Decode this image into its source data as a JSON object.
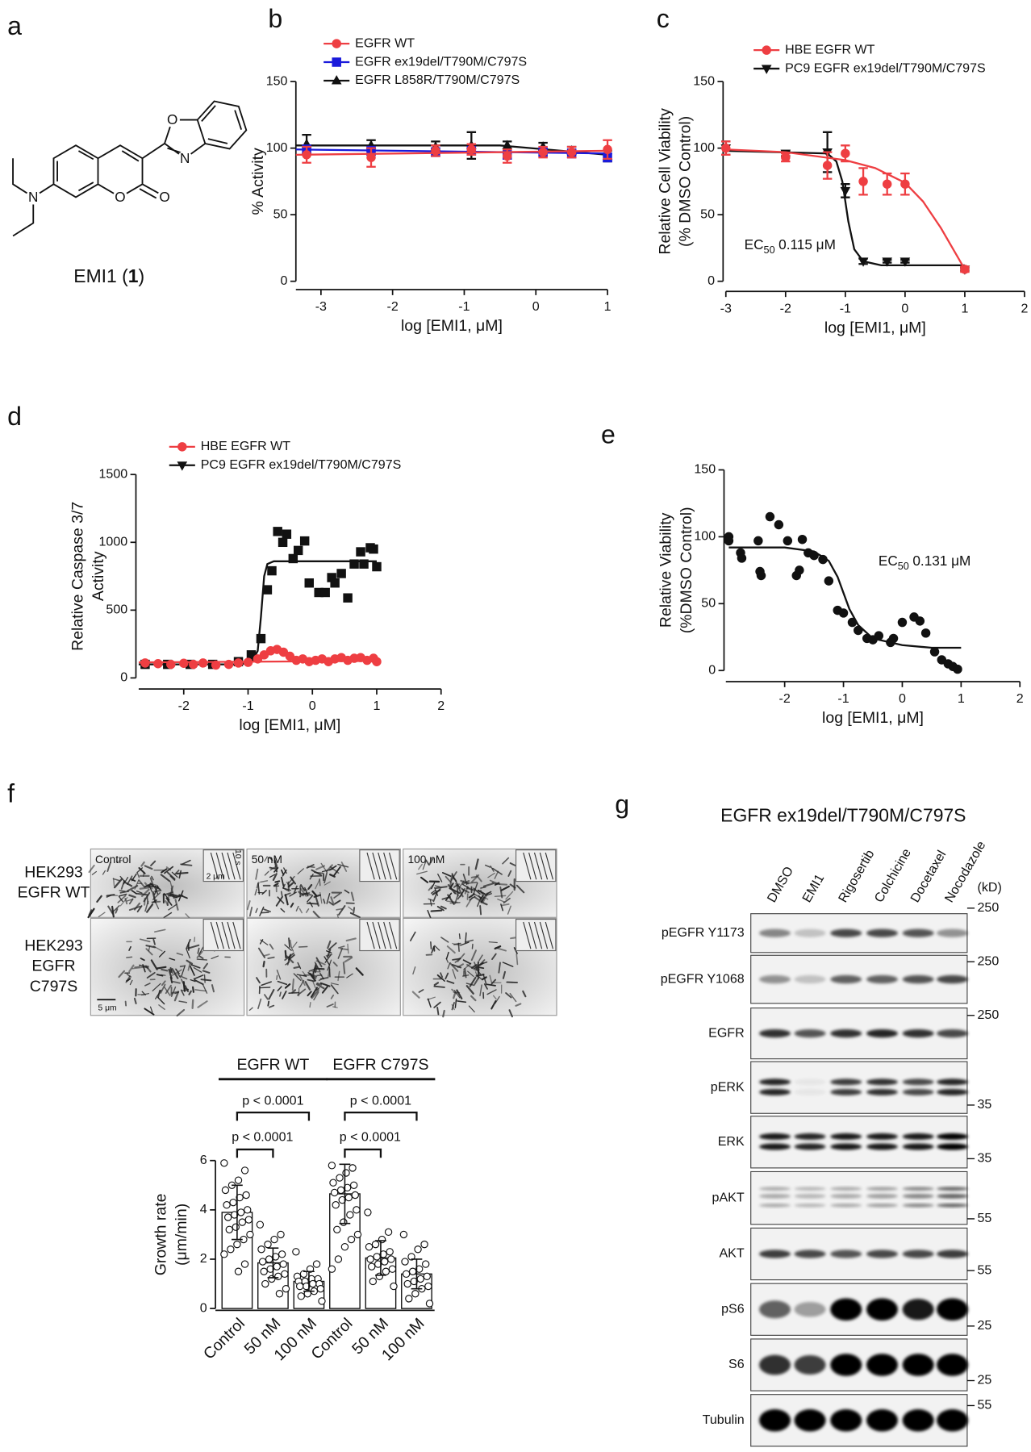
{
  "compound": {
    "panel_label": "a",
    "atoms": [
      "N",
      "O",
      "O",
      "O",
      "N"
    ],
    "name_parts": [
      "EMI1 (",
      "1",
      ")"
    ]
  },
  "chart_data": [
    {
      "type": "line",
      "panel_label": "b",
      "xlabel": "log [EMI1, μM]",
      "ylabel": [
        "% Activity"
      ],
      "xlim": [
        -3.35,
        1
      ],
      "ylim": [
        0,
        150
      ],
      "xticks": [
        -3,
        -2,
        -1,
        0,
        1
      ],
      "yticks": [
        0,
        50,
        100,
        150
      ],
      "legend": "top-left",
      "series": [
        {
          "name": "EGFR WT",
          "color": "#ee3e42",
          "marker": "circle",
          "x": [
            -3.2,
            -2.3,
            -1.4,
            -0.9,
            -0.4,
            0.1,
            0.5,
            1
          ],
          "values": [
            95,
            93,
            98,
            99,
            94,
            97,
            97,
            99
          ],
          "errors": [
            6,
            7,
            4,
            4,
            5,
            4,
            4,
            7
          ],
          "fit": {
            "x": [
              -3.35,
              1
            ],
            "values": [
              95,
              98
            ]
          }
        },
        {
          "name": "EGFR ex19del/T790M/C797S",
          "color": "#1a1adb",
          "marker": "square",
          "x": [
            -3.2,
            -2.3,
            -1.4,
            -0.9,
            -0.4,
            0.1,
            0.5,
            1
          ],
          "values": [
            99,
            98,
            97,
            98,
            95,
            97,
            96,
            93
          ],
          "errors": [
            3,
            3,
            3,
            3,
            3,
            3,
            3,
            3
          ],
          "fit": {
            "x": [
              -3.35,
              1
            ],
            "values": [
              99,
              96
            ]
          }
        },
        {
          "name": "EGFR L858R/T790M/C797S",
          "color": "#111111",
          "marker": "triangle",
          "x": [
            -3.2,
            -2.3,
            -1.4,
            -0.9,
            -0.4,
            0.1,
            0.5,
            1
          ],
          "values": [
            103,
            102,
            101,
            102,
            102,
            101,
            98,
            94
          ],
          "errors": [
            7,
            4,
            4,
            10,
            3,
            3,
            3,
            4
          ],
          "fit": {
            "x": [
              -3.35,
              -0.5,
              1
            ],
            "values": [
              102,
              102,
              95
            ]
          }
        }
      ]
    },
    {
      "type": "line",
      "panel_label": "c",
      "xlabel": "log [EMI1, μM]",
      "ylabel": [
        "Relative Cell Viability",
        "(% DMSO Control)"
      ],
      "xlim": [
        -3,
        2
      ],
      "ylim": [
        0,
        150
      ],
      "xticks": [
        -3,
        -2,
        -1,
        0,
        1,
        2
      ],
      "yticks": [
        0,
        50,
        100,
        150
      ],
      "legend": "top-left",
      "annotation": {
        "text": "EC",
        "sub": "50",
        "value": "0.115 μM"
      },
      "series": [
        {
          "name": "HBE EGFR WT",
          "color": "#ee3e42",
          "marker": "circle",
          "x": [
            -3,
            -2,
            -1.3,
            -1,
            -0.7,
            -0.3,
            0,
            1
          ],
          "values": [
            100,
            93,
            87,
            96,
            75,
            73,
            73,
            9
          ],
          "errors": [
            5,
            3,
            10,
            6,
            10,
            8,
            8,
            2
          ],
          "fit": {
            "x": [
              -3,
              -2,
              -1,
              -0.5,
              0,
              0.3,
              0.6,
              1
            ],
            "values": [
              99,
              97,
              91,
              85,
              74,
              60,
              40,
              9
            ]
          }
        },
        {
          "name": "PC9 EGFR ex19del/T790M/C797S",
          "color": "#111111",
          "marker": "triangle-down",
          "x": [
            -3,
            -2,
            -1.3,
            -1,
            -0.7,
            -0.3,
            0,
            1
          ],
          "values": [
            100,
            96,
            97,
            68,
            15,
            15,
            15,
            9
          ],
          "errors": [
            5,
            2,
            15,
            5,
            2,
            1,
            1,
            1
          ],
          "fit": {
            "x": [
              -3,
              -1.3,
              -1.15,
              -1.05,
              -0.95,
              -0.85,
              -0.7,
              -0.4,
              1
            ],
            "values": [
              98,
              96,
              90,
              75,
              45,
              24,
              15,
              12,
              12
            ]
          }
        }
      ]
    },
    {
      "type": "scatter",
      "panel_label": "d",
      "xlabel": "log [EMI1, μM]",
      "ylabel": [
        "Relative Caspase 3/7",
        "Activity"
      ],
      "xlim": [
        -2.7,
        2
      ],
      "ylim": [
        0,
        1500
      ],
      "xticks": [
        -2,
        -1,
        0,
        1,
        2
      ],
      "yticks": [
        0,
        500,
        1000,
        1500
      ],
      "legend": "top-left",
      "series": [
        {
          "name": "HBE EGFR WT",
          "color": "#ee3e42",
          "marker": "circle",
          "legend_marker": "circle",
          "x": [
            -2.6,
            -2.4,
            -2.2,
            -2.0,
            -1.85,
            -1.7,
            -1.5,
            -1.3,
            -1.15,
            -1.0,
            -0.85,
            -0.75,
            -0.65,
            -0.55,
            -0.45,
            -0.35,
            -0.25,
            -0.15,
            -0.05,
            0.05,
            0.15,
            0.25,
            0.35,
            0.45,
            0.55,
            0.65,
            0.75,
            0.85,
            0.95,
            1.0
          ],
          "values": [
            110,
            105,
            100,
            108,
            100,
            110,
            95,
            100,
            110,
            115,
            140,
            170,
            200,
            210,
            190,
            160,
            130,
            140,
            120,
            130,
            140,
            120,
            140,
            150,
            130,
            145,
            150,
            130,
            145,
            120
          ],
          "fit": {
            "x": [
              -2.7,
              1
            ],
            "values": [
              115,
              125
            ]
          }
        },
        {
          "name": "PC9 EGFR ex19del/T790M/C797S",
          "color": "#111111",
          "marker": "square",
          "legend_marker": "triangle-down",
          "x": [
            -2.6,
            -2.25,
            -1.9,
            -1.55,
            -1.15,
            -0.95,
            -0.8,
            -0.7,
            -0.63,
            -0.54,
            -0.46,
            -0.4,
            -0.3,
            -0.22,
            -0.12,
            -0.05,
            0.1,
            0.2,
            0.3,
            0.35,
            0.45,
            0.55,
            0.65,
            0.75,
            0.8,
            0.9,
            0.95,
            1.0
          ],
          "values": [
            100,
            100,
            100,
            100,
            120,
            170,
            290,
            650,
            790,
            1080,
            1000,
            1060,
            880,
            940,
            1010,
            700,
            630,
            630,
            740,
            700,
            770,
            590,
            840,
            930,
            840,
            960,
            950,
            820
          ],
          "fit": {
            "x": [
              -2.7,
              -1.2,
              -0.95,
              -0.85,
              -0.8,
              -0.75,
              -0.7,
              -0.6,
              1
            ],
            "values": [
              100,
              100,
              110,
              200,
              450,
              750,
              840,
              860,
              860
            ]
          }
        }
      ]
    },
    {
      "type": "scatter",
      "panel_label": "e",
      "xlabel": "log [EMI1, μM]",
      "ylabel": [
        "Relative Viability",
        "(%DMSO Control)"
      ],
      "xlim": [
        -3,
        2
      ],
      "ylim": [
        0,
        150
      ],
      "xticks": [
        -2,
        -1,
        0,
        1,
        2
      ],
      "yticks": [
        0,
        50,
        100,
        150
      ],
      "annotation": {
        "text": "EC",
        "sub": "50",
        "value": "0.131 μM"
      },
      "series": [
        {
          "color": "#111111",
          "marker": "circle",
          "x": [
            -2.95,
            -2.95,
            -2.75,
            -2.73,
            -2.45,
            -2.42,
            -2.4,
            -2.25,
            -2.1,
            -1.95,
            -1.8,
            -1.75,
            -1.7,
            -1.6,
            -1.5,
            -1.35,
            -1.25,
            -1.1,
            -1.0,
            -0.85,
            -0.75,
            -0.6,
            -0.5,
            -0.4,
            -0.2,
            -0.15,
            0,
            0.2,
            0.3,
            0.4,
            0.55,
            0.67,
            0.78,
            0.86,
            0.94
          ],
          "values": [
            100,
            97,
            88,
            84,
            97,
            74,
            71,
            115,
            109,
            97,
            71,
            75,
            98,
            88,
            86,
            83,
            67,
            45,
            43,
            36,
            30,
            24,
            23,
            26,
            21,
            24,
            36,
            40,
            37,
            28,
            14,
            8,
            5,
            3,
            1
          ],
          "fit": {
            "x": [
              -2.95,
              -2,
              -1.5,
              -1.25,
              -1.1,
              -1.0,
              -0.9,
              -0.75,
              -0.5,
              0,
              0.5,
              1.0
            ],
            "values": [
              92,
              92,
              89,
              82,
              70,
              58,
              46,
              34,
              24,
              19,
              17,
              17
            ]
          }
        }
      ]
    },
    {
      "type": "bar",
      "ylabel": [
        "Growth rate",
        "(μm/min)"
      ],
      "ylim": [
        0,
        6
      ],
      "yticks": [
        0,
        2,
        4,
        6
      ],
      "categories": [
        "Control",
        "50 nM",
        "100 nM",
        "Control",
        "50 nM",
        "100 nM"
      ],
      "values": [
        3.9,
        1.85,
        1.1,
        4.65,
        2.05,
        1.4
      ],
      "errors": [
        1.1,
        0.6,
        0.4,
        1.2,
        0.7,
        0.6
      ],
      "groups": [
        "EGFR WT",
        "EGFR C797S"
      ],
      "comparisons": [
        "p < 0.0001",
        "p < 0.0001",
        "p < 0.0001",
        "p < 0.0001"
      ],
      "points": [
        [
          5.9,
          5.6,
          5.2,
          5.0,
          4.8,
          4.6,
          4.5,
          4.3,
          4.2,
          4.0,
          3.9,
          3.8,
          3.7,
          3.6,
          3.5,
          3.3,
          3.2,
          3.0,
          2.8,
          2.6,
          2.4,
          2.2,
          1.8,
          1.5
        ],
        [
          3.4,
          3.0,
          2.8,
          2.6,
          2.4,
          2.2,
          2.1,
          2.0,
          1.9,
          1.8,
          1.7,
          1.6,
          1.5,
          1.4,
          1.3,
          1.2,
          1.0,
          0.8,
          0.6
        ],
        [
          2.3,
          1.8,
          1.6,
          1.4,
          1.3,
          1.2,
          1.2,
          1.1,
          1.1,
          1.0,
          1.0,
          0.9,
          0.9,
          0.8,
          0.7,
          0.6,
          0.5,
          0.3
        ],
        [
          5.8,
          5.7,
          5.5,
          5.3,
          5.1,
          5.0,
          4.9,
          4.8,
          4.7,
          4.6,
          4.5,
          4.4,
          4.2,
          4.0,
          3.8,
          3.5,
          3.2,
          3.0,
          2.8,
          2.5,
          2.0,
          1.6
        ],
        [
          3.9,
          3.1,
          2.8,
          2.6,
          2.5,
          2.3,
          2.2,
          2.1,
          2.0,
          2.0,
          1.9,
          1.8,
          1.7,
          1.6,
          1.5,
          1.3,
          1.1,
          0.9
        ],
        [
          3.0,
          2.6,
          2.4,
          2.1,
          1.9,
          1.8,
          1.6,
          1.5,
          1.4,
          1.3,
          1.2,
          1.1,
          1.0,
          0.9,
          0.8,
          0.6,
          0.4,
          0.2
        ]
      ]
    }
  ],
  "microscopy": {
    "panel_label": "f",
    "row_labels": [
      [
        "HEK293",
        "EGFR WT"
      ],
      [
        "HEK293",
        "EGFR",
        "C797S"
      ]
    ],
    "column_labels": [
      "Control",
      "50 nM",
      "100 nM"
    ],
    "inset_scale": "2 μm",
    "inset_time": "10 s",
    "scale_bar": "5 μm"
  },
  "blot": {
    "panel_label": "g",
    "title": "EGFR ex19del/T790M/C797S",
    "lanes": [
      "DMSO",
      "EMI1",
      "Rigosertib",
      "Colchicine",
      "Docetaxel",
      "Nocodazole"
    ],
    "unit": "(kD)",
    "rows": [
      "pEGFR Y1173",
      "pEGFR Y1068",
      "EGFR",
      "pERK",
      "ERK",
      "pAKT",
      "AKT",
      "pS6",
      "S6",
      "Tubulin"
    ],
    "markers": [
      "250",
      "250",
      "250",
      "35",
      "35",
      "55",
      "55",
      "25",
      "25",
      "55"
    ]
  }
}
